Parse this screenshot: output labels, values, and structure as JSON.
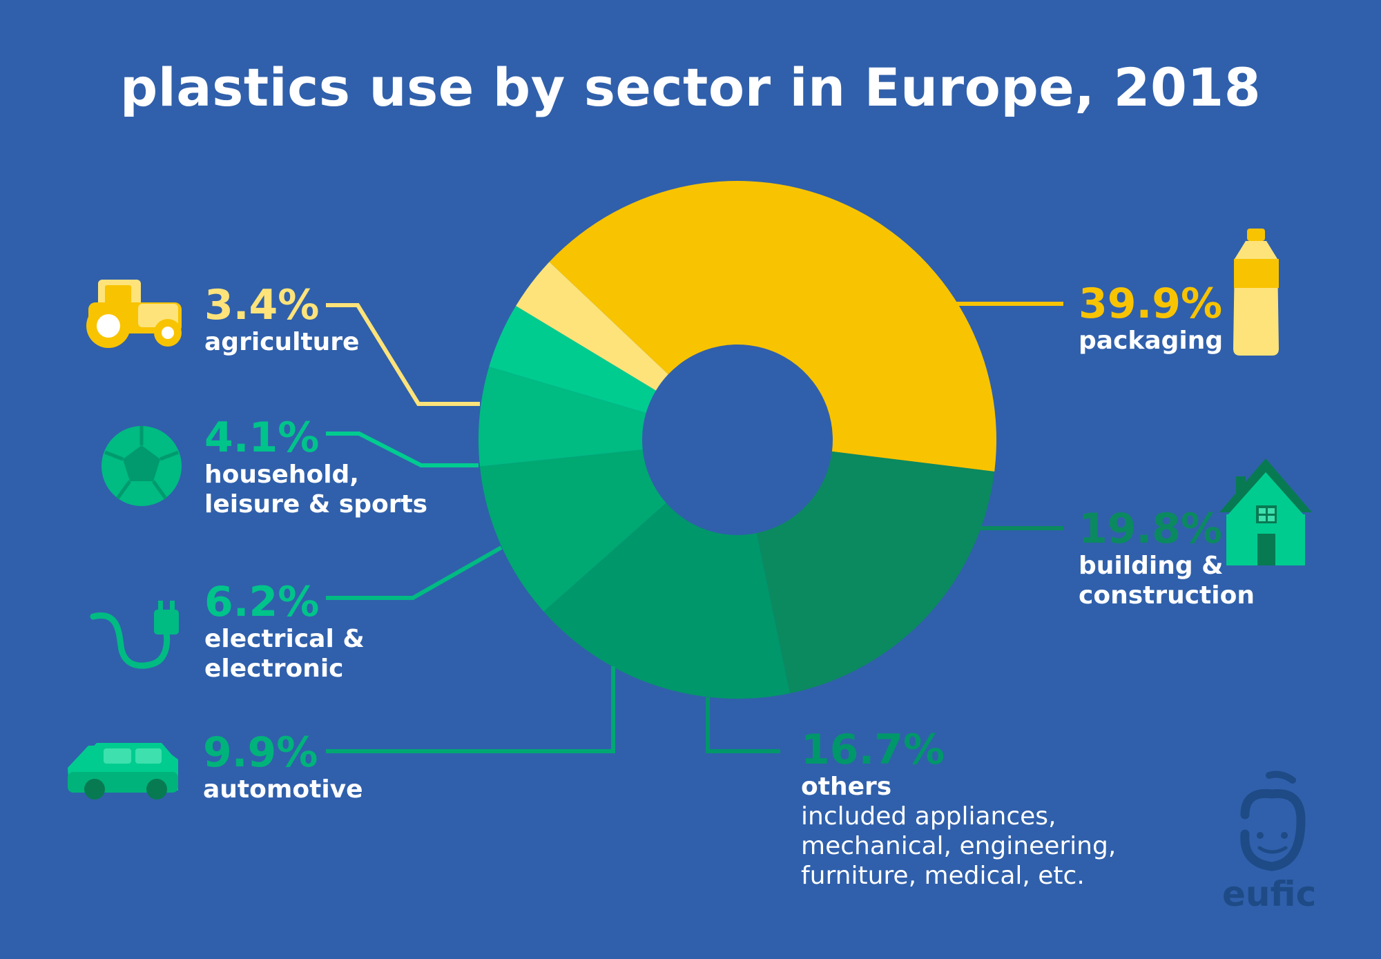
{
  "chart_data": {
    "type": "pie",
    "title": "plastics use by sector in Europe, 2018",
    "slices": [
      {
        "pct": "39.9%",
        "value": 39.9,
        "name": "packaging",
        "sub": "",
        "color": "#f8c300",
        "icon": "bottle-icon"
      },
      {
        "pct": "19.8%",
        "value": 19.8,
        "name": "building &\nconstruction",
        "sub": "",
        "color": "#0a8a5e",
        "icon": "house-icon"
      },
      {
        "pct": "16.7%",
        "value": 16.7,
        "name": "others",
        "sub": "included appliances,\nmechanical, engineering,\nfurniture, medical, etc.",
        "color": "#00976a",
        "icon": ""
      },
      {
        "pct": "9.9%",
        "value": 9.9,
        "name": "automotive",
        "sub": "",
        "color": "#00a872",
        "icon": "car-icon"
      },
      {
        "pct": "6.2%",
        "value": 6.2,
        "name": "electrical &\nelectronic",
        "sub": "",
        "color": "#00bb82",
        "icon": "plug-icon"
      },
      {
        "pct": "4.1%",
        "value": 4.1,
        "name": "household,\nleisure & sports",
        "sub": "",
        "color": "#00cc90",
        "icon": "football-icon"
      },
      {
        "pct": "3.4%",
        "value": 3.4,
        "name": "agriculture",
        "sub": "",
        "color": "#fde37a",
        "icon": "tractor-icon"
      }
    ]
  },
  "colors": {
    "background": "#3060ab",
    "yellow_label": "#f8c300",
    "green_label": "#00c48a",
    "dark_green_label": "#0b8a60"
  },
  "logo": {
    "text": "eufic"
  }
}
